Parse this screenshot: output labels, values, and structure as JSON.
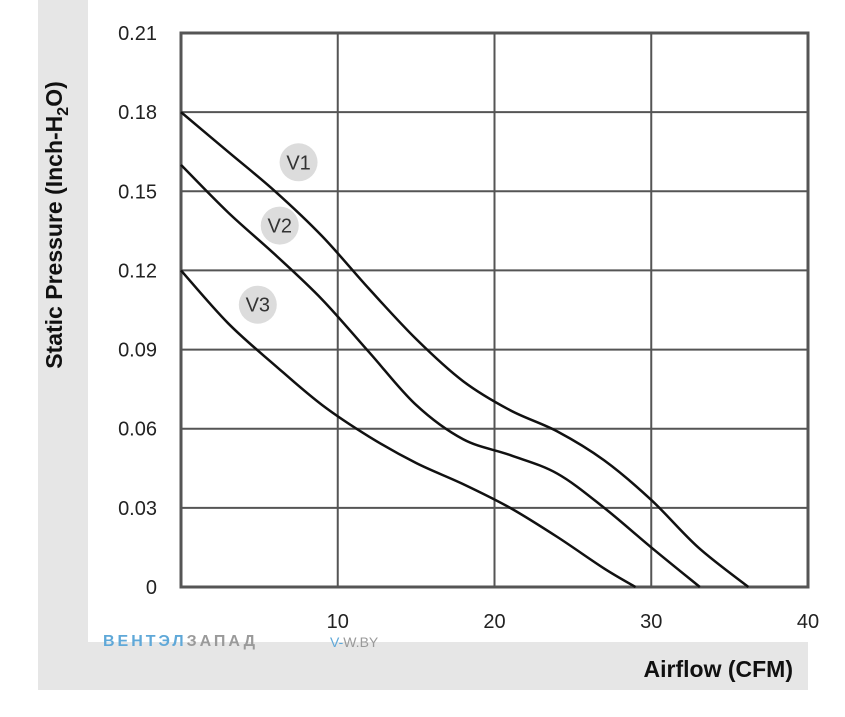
{
  "chart_data": {
    "type": "line",
    "xlabel": "Airflow (CFM)",
    "ylabel": "Static Pressure (Inch-H",
    "ylabel_sub": "2",
    "ylabel_end": "O)",
    "xlim": [
      0,
      40
    ],
    "ylim": [
      0,
      0.21
    ],
    "x_ticks": [
      {
        "value": 10,
        "label": "10"
      },
      {
        "value": 20,
        "label": "20"
      },
      {
        "value": 30,
        "label": "30"
      },
      {
        "value": 40,
        "label": "40"
      }
    ],
    "y_ticks": [
      {
        "value": 0,
        "label": "0"
      },
      {
        "value": 0.03,
        "label": "0.03"
      },
      {
        "value": 0.06,
        "label": "0.06"
      },
      {
        "value": 0.09,
        "label": "0.09"
      },
      {
        "value": 0.12,
        "label": "0.12"
      },
      {
        "value": 0.15,
        "label": "0.15"
      },
      {
        "value": 0.18,
        "label": "0.18"
      },
      {
        "value": 0.21,
        "label": "0.21"
      }
    ],
    "grid": true,
    "series": [
      {
        "name": "V1",
        "label_at": [
          7.5,
          0.161
        ],
        "x": [
          0,
          3,
          6,
          9,
          12,
          15,
          18,
          21,
          24,
          27,
          30,
          33,
          36.2
        ],
        "y": [
          0.18,
          0.165,
          0.15,
          0.133,
          0.113,
          0.094,
          0.078,
          0.067,
          0.059,
          0.048,
          0.033,
          0.015,
          0.0
        ]
      },
      {
        "name": "V2",
        "label_at": [
          6.3,
          0.137
        ],
        "x": [
          0,
          3,
          6,
          9,
          12,
          15,
          18,
          21,
          24,
          27,
          30,
          33.1
        ],
        "y": [
          0.16,
          0.142,
          0.126,
          0.109,
          0.089,
          0.069,
          0.056,
          0.05,
          0.043,
          0.03,
          0.015,
          0.0
        ]
      },
      {
        "name": "V3",
        "label_at": [
          4.9,
          0.107
        ],
        "x": [
          0,
          3,
          6,
          9,
          12,
          15,
          18,
          21,
          24,
          27,
          29
        ],
        "y": [
          0.12,
          0.1,
          0.084,
          0.069,
          0.057,
          0.047,
          0.039,
          0.03,
          0.019,
          0.007,
          0.0
        ]
      }
    ]
  },
  "watermark": {
    "brand_a": "ВЕНТЭЛ",
    "brand_b": "ЗАПАД",
    "url_a": "V-",
    "url_b": "W.BY"
  },
  "colors": {
    "band": "#e6e6e6",
    "grid": "#555555",
    "frame": "#555555",
    "curve": "#111111",
    "label_bubble": "#dcdcdc"
  }
}
